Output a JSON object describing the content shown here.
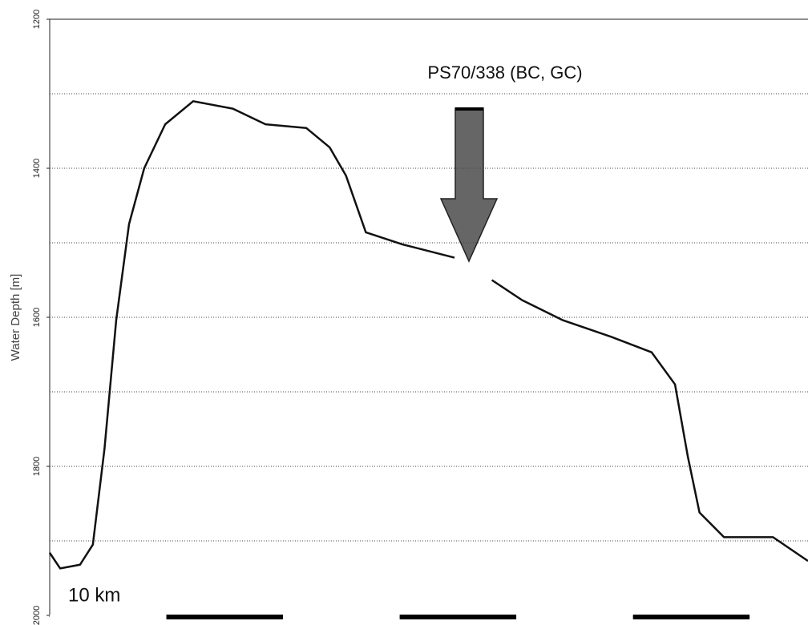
{
  "chart_data": {
    "type": "line",
    "y_label": "Water Depth [m]",
    "annotation": "PS70/338 (BC, GC)",
    "scale_bar": {
      "label": "10 km",
      "length": 10
    },
    "x": [
      0,
      0.9,
      2.6,
      3.7,
      4.7,
      5.7,
      6.8,
      8.1,
      9.9,
      12.3,
      15.7,
      18.5,
      22,
      24,
      25.4,
      27.1,
      30.2,
      34.7,
      36.3,
      37.9,
      40.5,
      44,
      48.1,
      51.6,
      53.6,
      54.7,
      55.7,
      57.8,
      62,
      65
    ],
    "values": [
      1916,
      1937,
      1932,
      1905,
      1776,
      1604,
      1475,
      1400,
      1341,
      1310,
      1320,
      1341,
      1346,
      1372,
      1410,
      1486,
      1502,
      1520,
      null,
      1550,
      1577,
      1604,
      1626,
      1647,
      1690,
      1787,
      1862,
      1895,
      1895,
      1927
    ],
    "color": "#111111",
    "xlim": [
      0,
      65
    ],
    "ylim": [
      2000,
      1200
    ],
    "yticks": [
      1200,
      1400,
      1600,
      1800,
      2000
    ],
    "minor_yticks": [
      1300,
      1500,
      1700,
      1900
    ],
    "grid": true
  }
}
